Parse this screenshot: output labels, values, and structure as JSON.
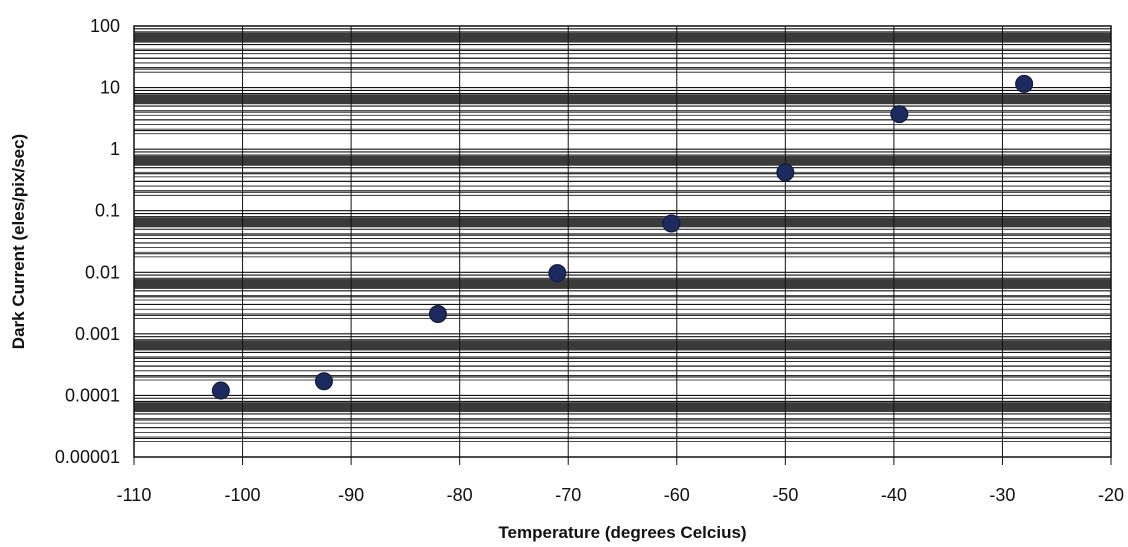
{
  "chart_data": {
    "type": "scatter",
    "title": "",
    "xlabel": "Temperature (degrees Celcius)",
    "ylabel": "Dark Current (eles/pix/sec)",
    "xlim": [
      -110,
      -20
    ],
    "ylim": [
      1e-05,
      100
    ],
    "yscale": "log",
    "grid": true,
    "x_ticks": [
      -110,
      -100,
      -90,
      -80,
      -70,
      -60,
      -50,
      -40,
      -30,
      -20
    ],
    "x_tick_labels": [
      "-110",
      "-100",
      "-90",
      "-80",
      "-70",
      "-60",
      "-50",
      "-40",
      "-30",
      "-20"
    ],
    "y_ticks": [
      1e-05,
      0.0001,
      0.001,
      0.01,
      0.1,
      1,
      10,
      100
    ],
    "y_tick_labels": [
      "0.00001",
      "0.0001",
      "0.001",
      "0.01",
      "0.1",
      "1",
      "10",
      "100"
    ],
    "series": [
      {
        "x": [
          -102,
          -92.5,
          -82,
          -71,
          -60.5,
          -50,
          -39.5,
          -28
        ],
        "y": [
          0.00012,
          0.00017,
          0.0021,
          0.0097,
          0.062,
          0.42,
          3.7,
          11.5
        ]
      }
    ],
    "colors": {
      "marker": "#1c2a5e",
      "grid": "#111111",
      "band": "#3a3a3a"
    }
  }
}
